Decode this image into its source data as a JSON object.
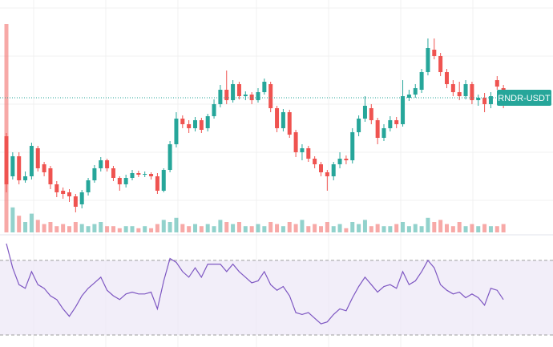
{
  "chart_data": {
    "type": "candlestick",
    "symbol": "RNDR-USDT",
    "up_color": "#26a69a",
    "down_color": "#ef5350",
    "rsi_color": "#7e57c2",
    "ylim": [
      10,
      300
    ],
    "price_line": 178,
    "open": [
      130,
      80,
      105,
      75,
      80,
      115,
      95,
      90,
      70,
      62,
      60,
      55,
      45,
      60,
      75,
      90,
      100,
      90,
      78,
      70,
      78,
      84,
      82,
      83,
      80,
      62,
      88,
      120,
      152,
      145,
      140,
      150,
      140,
      155,
      170,
      188,
      175,
      195,
      180,
      182,
      175,
      185,
      195,
      165,
      140,
      160,
      135,
      110,
      115,
      102,
      95,
      85,
      80,
      95,
      102,
      100,
      135,
      152,
      165,
      150,
      128,
      140,
      150,
      145,
      178,
      182,
      188,
      210,
      238,
      230,
      210,
      195,
      185,
      180,
      195,
      175,
      178,
      170,
      200,
      190
    ],
    "high": [
      134,
      110,
      110,
      86,
      122,
      118,
      98,
      93,
      74,
      66,
      64,
      58,
      63,
      78,
      94,
      104,
      102,
      93,
      80,
      82,
      88,
      87,
      86,
      85,
      84,
      90,
      124,
      160,
      156,
      150,
      154,
      153,
      158,
      176,
      194,
      212,
      200,
      198,
      186,
      185,
      190,
      202,
      198,
      168,
      164,
      163,
      138,
      120,
      118,
      105,
      98,
      88,
      98,
      110,
      106,
      140,
      156,
      180,
      170,
      153,
      145,
      155,
      154,
      200,
      188,
      195,
      214,
      252,
      252,
      234,
      214,
      200,
      198,
      200,
      198,
      182,
      184,
      185,
      205,
      194
    ],
    "low": [
      60,
      76,
      70,
      72,
      76,
      86,
      80,
      64,
      54,
      52,
      48,
      35,
      40,
      56,
      72,
      86,
      86,
      74,
      62,
      66,
      75,
      79,
      79,
      76,
      58,
      60,
      85,
      116,
      140,
      134,
      136,
      134,
      136,
      152,
      166,
      170,
      172,
      176,
      175,
      170,
      172,
      182,
      160,
      135,
      136,
      128,
      104,
      100,
      98,
      90,
      80,
      62,
      75,
      90,
      95,
      96,
      130,
      148,
      145,
      120,
      124,
      136,
      140,
      142,
      174,
      178,
      184,
      206,
      226,
      205,
      190,
      180,
      175,
      176,
      170,
      168,
      160,
      165,
      188,
      165
    ],
    "close": [
      70,
      105,
      75,
      80,
      118,
      90,
      85,
      70,
      60,
      58,
      55,
      42,
      60,
      75,
      90,
      100,
      90,
      78,
      70,
      78,
      84,
      82,
      83,
      80,
      62,
      88,
      120,
      152,
      145,
      140,
      150,
      138,
      155,
      170,
      188,
      175,
      195,
      180,
      182,
      175,
      185,
      198,
      165,
      140,
      160,
      132,
      110,
      115,
      102,
      95,
      85,
      80,
      95,
      102,
      100,
      135,
      152,
      168,
      150,
      128,
      140,
      150,
      145,
      180,
      182,
      190,
      210,
      240,
      230,
      210,
      195,
      185,
      180,
      195,
      175,
      178,
      170,
      180,
      192,
      170
    ],
    "volume_lim": [
      0,
      100
    ],
    "volume": [
      100,
      12,
      8,
      5,
      9,
      6,
      4,
      5,
      3,
      4,
      3,
      5,
      4,
      3,
      4,
      5,
      3,
      3,
      2,
      3,
      3,
      2,
      3,
      2,
      4,
      6,
      5,
      7,
      4,
      3,
      4,
      3,
      4,
      3,
      6,
      5,
      4,
      5,
      3,
      3,
      4,
      3,
      5,
      4,
      3,
      5,
      4,
      6,
      3,
      4,
      3,
      5,
      3,
      4,
      2,
      5,
      4,
      6,
      3,
      4,
      3,
      3,
      4,
      5,
      3,
      4,
      3,
      7,
      5,
      6,
      4,
      3,
      5,
      3,
      4,
      3,
      4,
      3,
      3,
      4
    ],
    "rsi_lim": [
      27,
      82
    ],
    "rsi_bands": [
      70,
      30
    ],
    "rsi": [
      79,
      66,
      57,
      55,
      64,
      57,
      55,
      51,
      49,
      44,
      40,
      45,
      51,
      55,
      58,
      61,
      54,
      51,
      49,
      52,
      53,
      52,
      52,
      53,
      44,
      59,
      71,
      69,
      64,
      61,
      66,
      61,
      68,
      68,
      68,
      64,
      68,
      64,
      61,
      58,
      59,
      64,
      57,
      54,
      56,
      51,
      42,
      41,
      42,
      39,
      36,
      37,
      41,
      44,
      43,
      50,
      56,
      61,
      57,
      53,
      56,
      57,
      55,
      64,
      57,
      59,
      64,
      70,
      66,
      57,
      54,
      52,
      53,
      50,
      52,
      50,
      46,
      55,
      54,
      49
    ]
  }
}
